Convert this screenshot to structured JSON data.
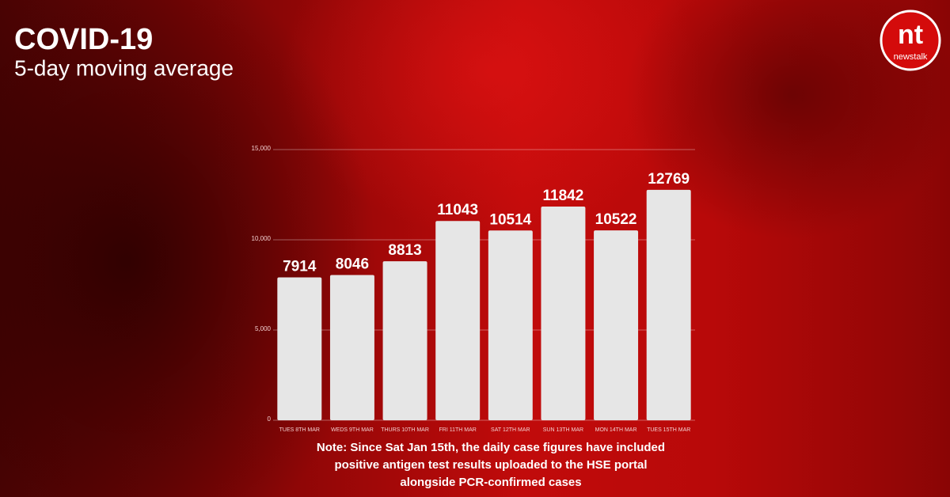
{
  "logo": {
    "mark": "nt",
    "name": "newstalk"
  },
  "chart_data": {
    "type": "bar",
    "title": "COVID-19",
    "subtitle": "5-day moving average",
    "categories": [
      "TUES 8TH MAR",
      "WEDS 9TH MAR",
      "THURS 10TH MAR",
      "FRI 11TH MAR",
      "SAT 12TH MAR",
      "SUN 13TH MAR",
      "MON 14TH MAR",
      "TUES 15TH MAR"
    ],
    "values": [
      7914,
      8046,
      8813,
      11043,
      10514,
      11842,
      10522,
      12769
    ],
    "color": "#e6e6e6",
    "ylim": [
      0,
      15000
    ],
    "yticks": [
      0,
      {
        "value": 5000,
        "label": "5,000"
      },
      {
        "value": 10000,
        "label": "10,000"
      },
      {
        "value": 15000,
        "label": "15,000"
      }
    ],
    "grid": true,
    "note": [
      "Note: Since Sat Jan 15th, the daily case figures have included",
      "positive antigen test results uploaded to the HSE portal",
      "alongside PCR-confirmed cases"
    ]
  }
}
